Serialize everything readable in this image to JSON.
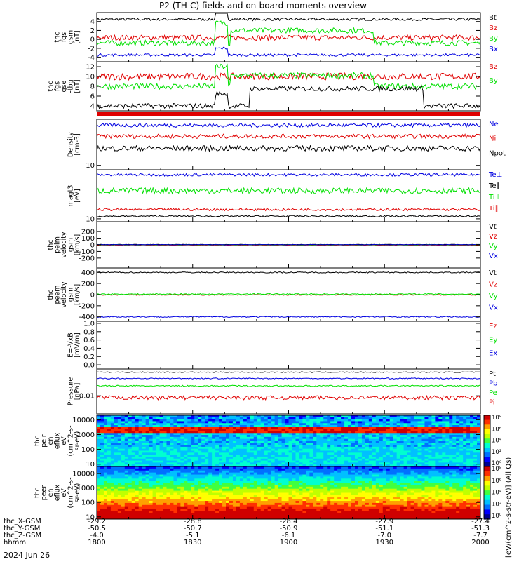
{
  "title": "P2 (TH-C) fields and on-board moments overview",
  "date_label": "2024 Jun 26",
  "colorbar_label": "[eV/(cm^2-s-str-eV)] (All Qs)",
  "colorbar_ticks": [
    "10⁸",
    "10⁶",
    "10⁴",
    "10²",
    "10⁰"
  ],
  "colors": {
    "black": "#000000",
    "red": "#e00000",
    "green": "#00e000",
    "blue": "#0000e0"
  },
  "ephemeris": {
    "labels": [
      "thc_X-GSM",
      "thc_Y-GSM",
      "thc_Z-GSM",
      "hhmm"
    ],
    "columns": [
      [
        "-29.2",
        "-50.5",
        "-4.0",
        "1800"
      ],
      [
        "-28.8",
        "-50.7",
        "-5.1",
        "1830"
      ],
      [
        "-28.4",
        "-50.9",
        "-6.1",
        "1900"
      ],
      [
        "-27.9",
        "-51.1",
        "-7.0",
        "1930"
      ],
      [
        "-27.4",
        "-51.3",
        "-7.7",
        "2000"
      ]
    ]
  },
  "chart_data": [
    {
      "type": "line",
      "id": "fgs_gsm",
      "ylabel": [
        "thc",
        "fgs",
        "gsm",
        "[nT]"
      ],
      "yrange": [
        -5,
        6
      ],
      "yticks": [
        "4",
        "2",
        "0",
        "-2",
        "-4"
      ],
      "ytick_values": [
        4,
        2,
        0,
        -2,
        -4
      ],
      "series": [
        {
          "name": "Bt",
          "color": "#000000",
          "base": 4.5,
          "noise": 0.3,
          "events": [
            [
              0.31,
              0.34,
              3.0
            ]
          ]
        },
        {
          "name": "Bz",
          "color": "#e00000",
          "base": 0.4,
          "noise": 0.6
        },
        {
          "name": "By",
          "color": "#00e000",
          "base": -0.8,
          "noise": 0.6,
          "events": [
            [
              0.31,
              0.34,
              4.5
            ],
            [
              0.35,
              0.72,
              2.8
            ]
          ]
        },
        {
          "name": "Bx",
          "color": "#0000e0",
          "base": -3.5,
          "noise": 0.3,
          "events": [
            [
              0.31,
              0.34,
              1.5
            ]
          ]
        }
      ]
    },
    {
      "type": "line",
      "id": "fgs_gse",
      "ylabel": [
        "thc",
        "fgs",
        "gse",
        "-tbg",
        "[nT]"
      ],
      "yrange": [
        3,
        13
      ],
      "yticks": [
        "12",
        "10",
        "8",
        "6",
        "4"
      ],
      "ytick_values": [
        12,
        10,
        8,
        6,
        4
      ],
      "series": [
        {
          "name": "Bz",
          "color": "#e00000",
          "base": 10,
          "noise": 0.7
        },
        {
          "name": "By",
          "color": "#00e000",
          "base": 8,
          "noise": 0.6,
          "events": [
            [
              0.31,
              0.34,
              4
            ],
            [
              0.35,
              0.72,
              2.2
            ]
          ]
        },
        {
          "name": "",
          "color": "#000000",
          "base": 4,
          "noise": 0.5,
          "events": [
            [
              0.31,
              0.34,
              2.5
            ],
            [
              0.4,
              0.85,
              3.5
            ]
          ]
        }
      ]
    },
    {
      "type": "line",
      "id": "density",
      "ylabel": [
        "Density",
        "[cm-3]"
      ],
      "yrange": [
        9,
        30
      ],
      "yticks": [
        "10"
      ],
      "ytick_values": [
        10
      ],
      "series": [
        {
          "name": "Ne",
          "color": "#0000e0",
          "base": 26,
          "noise": 1.2
        },
        {
          "name": "Ni",
          "color": "#e00000",
          "base": 20,
          "noise": 1.0
        },
        {
          "name": "Npot",
          "color": "#000000",
          "base": 15,
          "noise": 1.0
        }
      ]
    },
    {
      "type": "line",
      "id": "temperature",
      "ylabel": [
        "magt3",
        "[eV]"
      ],
      "yrange": [
        9,
        60
      ],
      "yticks": [
        "10"
      ],
      "ytick_values": [
        10
      ],
      "series": [
        {
          "name": "Te⊥",
          "color": "#0000e0",
          "base": 50,
          "noise": 2.5
        },
        {
          "name": "Te∥",
          "color": "#000000",
          "base": 11,
          "noise": 0.3
        },
        {
          "name": "Ti⊥",
          "color": "#00e000",
          "base": 28,
          "noise": 3.0
        },
        {
          "name": "Ti∥",
          "color": "#e00000",
          "base": 14,
          "noise": 0.6
        }
      ]
    },
    {
      "type": "line",
      "id": "peim_velocity",
      "ylabel": [
        "thc",
        "peim",
        "velocity",
        "gsm",
        "[km/s]"
      ],
      "yrange": [
        -350,
        350
      ],
      "yticks": [
        "200",
        "100",
        "0",
        "-100",
        "-200"
      ],
      "ytick_values": [
        200,
        100,
        0,
        -100,
        -200
      ],
      "series": [
        {
          "name": "Vt",
          "color": "#000000",
          "base": 5,
          "noise": 3
        },
        {
          "name": "Vz",
          "color": "#e00000",
          "base": -5,
          "noise": 3
        },
        {
          "name": "Vy",
          "color": "#00e000",
          "base": 0,
          "noise": 3
        },
        {
          "name": "Vx",
          "color": "#0000e0",
          "base": 2,
          "noise": 3
        }
      ]
    },
    {
      "type": "line",
      "id": "peem_velocity",
      "ylabel": [
        "thc",
        "peem",
        "velocity",
        "gsm",
        "[km/s]"
      ],
      "yrange": [
        -480,
        480
      ],
      "yticks": [
        "400",
        "200",
        "0",
        "-200",
        "-400"
      ],
      "ytick_values": [
        400,
        200,
        0,
        -200,
        -400
      ],
      "series": [
        {
          "name": "Vt",
          "color": "#000000",
          "base": 400,
          "noise": 10
        },
        {
          "name": "Vz",
          "color": "#e00000",
          "base": -5,
          "noise": 8
        },
        {
          "name": "Vy",
          "color": "#00e000",
          "base": 10,
          "noise": 10
        },
        {
          "name": "Vx",
          "color": "#0000e0",
          "base": -400,
          "noise": 10
        }
      ]
    },
    {
      "type": "line",
      "id": "efield",
      "ylabel": [
        "E=-VxB",
        "[mV/m]"
      ],
      "yrange": [
        -0.1,
        1.05
      ],
      "yticks": [
        "1.0",
        "0.8",
        "0.6",
        "0.4",
        "0.2",
        "0.0"
      ],
      "ytick_values": [
        1.0,
        0.8,
        0.6,
        0.4,
        0.2,
        0.0
      ],
      "series": [
        {
          "name": "Ez",
          "color": "#e00000",
          "empty": true
        },
        {
          "name": "Ey",
          "color": "#00e000",
          "empty": true
        },
        {
          "name": "Ex",
          "color": "#0000e0",
          "empty": true
        }
      ]
    },
    {
      "type": "line",
      "id": "pressure",
      "ylabel": [
        "Pressure",
        "[nPa]"
      ],
      "yrange": [
        0.001,
        0.3
      ],
      "yticks": [
        "0.01"
      ],
      "ytick_values": [
        0.01
      ],
      "series": [
        {
          "name": "Pt",
          "color": "#000000",
          "base": 0.2,
          "noise": 0.01
        },
        {
          "name": "Pb",
          "color": "#0000e0",
          "base": 0.09,
          "noise": 0.006
        },
        {
          "name": "Pe",
          "color": "#00e000",
          "base": 0.035,
          "noise": 0.003
        },
        {
          "name": "Pi",
          "color": "#e00000",
          "base": 0.008,
          "noise": 0.002
        }
      ]
    },
    {
      "type": "heatmap",
      "id": "peir_eflux",
      "ylabel": [
        "thc",
        "peir",
        "en",
        "eflux",
        "eV",
        "(cm^2-s-",
        "sr-eV)"
      ],
      "yrange": [
        7,
        20000
      ],
      "yticks": [
        "10000",
        "1000",
        "100",
        "10"
      ],
      "ytick_values": [
        10000,
        1000,
        100,
        10
      ]
    },
    {
      "type": "heatmap",
      "id": "peer_eflux",
      "ylabel": [
        "thc",
        "peer",
        "en",
        "eflux",
        "eV",
        "(cm^2-s-",
        "sr-eV)"
      ],
      "yrange": [
        7,
        30000
      ],
      "yticks": [
        "10000",
        "1000",
        "100",
        "10"
      ],
      "ytick_values": [
        10000,
        1000,
        100,
        10
      ]
    }
  ]
}
